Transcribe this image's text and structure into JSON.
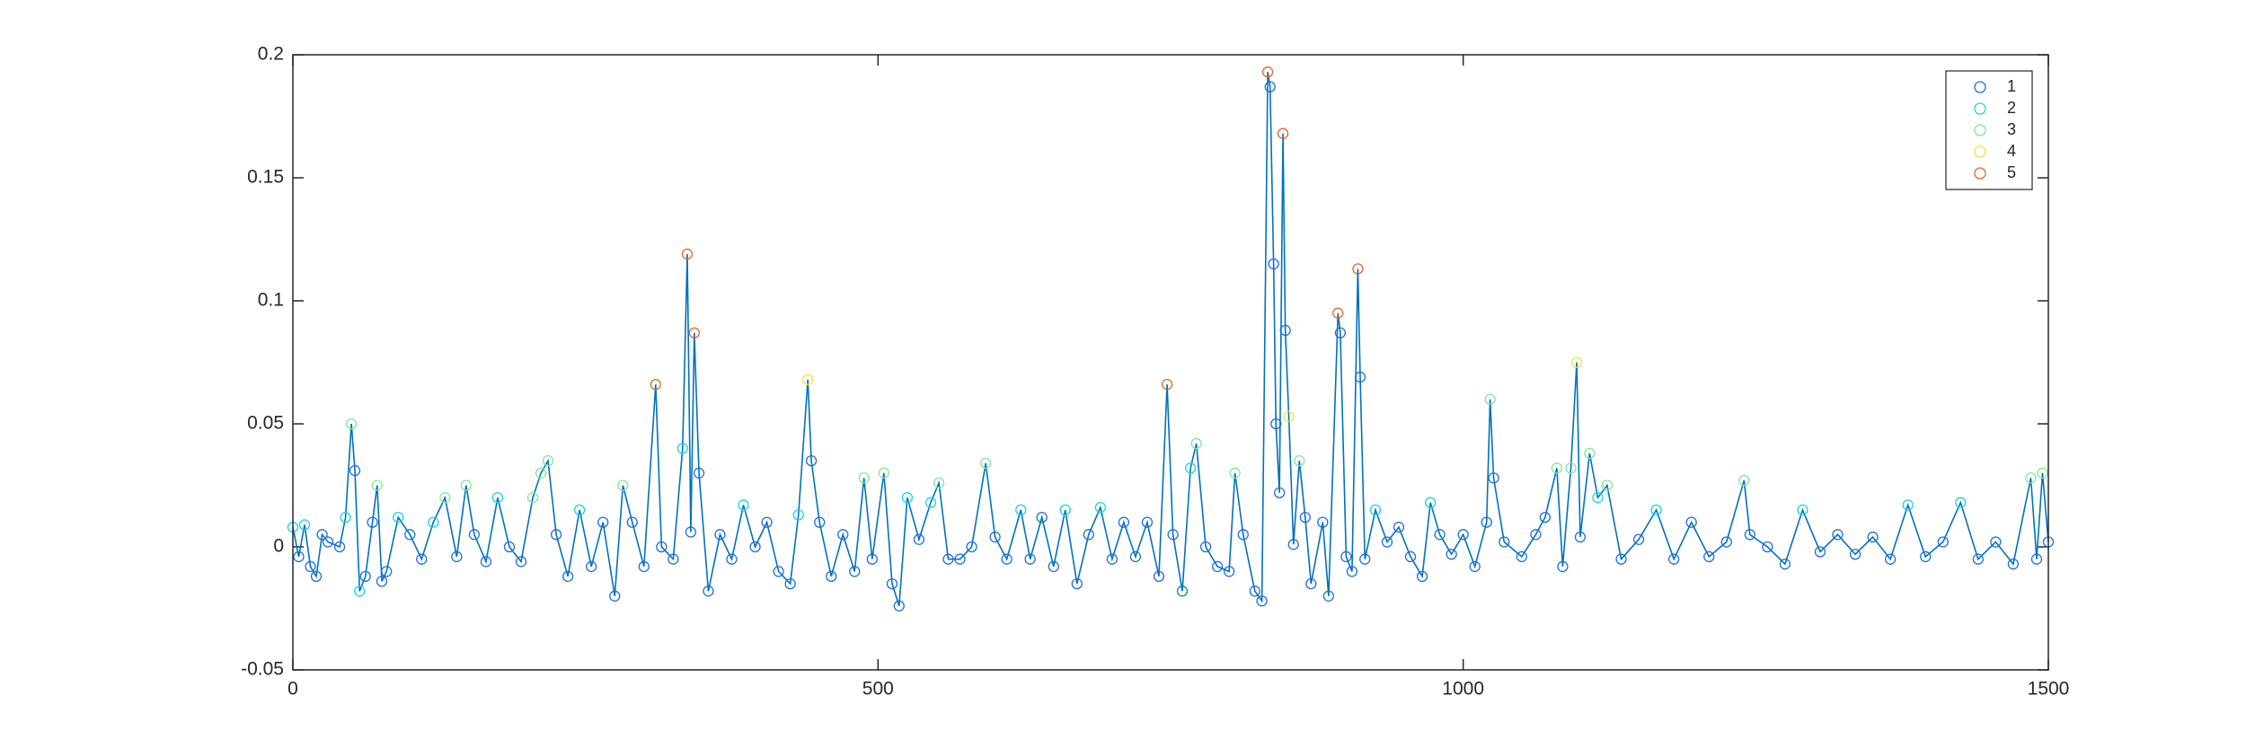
{
  "chart_data": {
    "type": "line",
    "x": [
      0,
      5,
      10,
      15,
      20,
      25,
      30,
      40,
      45,
      50,
      53,
      57,
      62,
      68,
      72,
      76,
      80,
      90,
      100,
      110,
      120,
      130,
      140,
      148,
      155,
      165,
      175,
      185,
      195,
      205,
      212,
      218,
      225,
      235,
      245,
      255,
      265,
      275,
      282,
      290,
      300,
      310,
      315,
      325,
      333,
      337,
      340,
      343,
      347,
      355,
      365,
      375,
      385,
      395,
      405,
      415,
      425,
      432,
      440,
      443,
      450,
      460,
      470,
      480,
      488,
      495,
      505,
      512,
      518,
      525,
      535,
      545,
      552,
      560,
      570,
      580,
      592,
      600,
      610,
      622,
      630,
      640,
      650,
      660,
      670,
      680,
      690,
      700,
      710,
      720,
      730,
      740,
      747,
      752,
      760,
      767,
      772,
      780,
      790,
      800,
      805,
      812,
      822,
      828,
      833,
      835,
      838,
      840,
      843,
      846,
      848,
      851,
      855,
      860,
      865,
      870,
      880,
      885,
      893,
      895,
      900,
      905,
      910,
      912,
      916,
      925,
      935,
      945,
      955,
      965,
      972,
      980,
      990,
      1000,
      1010,
      1020,
      1023,
      1026,
      1035,
      1050,
      1062,
      1070,
      1080,
      1085,
      1092,
      1097,
      1100,
      1108,
      1115,
      1123,
      1135,
      1150,
      1165,
      1180,
      1195,
      1210,
      1225,
      1240,
      1245,
      1260,
      1275,
      1290,
      1305,
      1320,
      1335,
      1350,
      1365,
      1380,
      1395,
      1410,
      1425,
      1440,
      1455,
      1470,
      1485,
      1490,
      1495,
      1500
    ],
    "values": [
      0.008,
      -0.004,
      0.009,
      -0.008,
      -0.012,
      0.005,
      0.002,
      0,
      0.012,
      0.05,
      0.031,
      -0.018,
      -0.012,
      0.01,
      0.025,
      -0.014,
      -0.01,
      0.012,
      0.005,
      -0.005,
      0.01,
      0.02,
      -0.004,
      0.025,
      0.005,
      -0.006,
      0.02,
      0,
      -0.006,
      0.02,
      0.03,
      0.035,
      0.005,
      -0.012,
      0.015,
      -0.008,
      0.01,
      -0.02,
      0.025,
      0.01,
      -0.008,
      0.066,
      0,
      -0.005,
      0.04,
      0.119,
      0.006,
      0.087,
      0.03,
      -0.018,
      0.005,
      -0.005,
      0.017,
      0,
      0.01,
      -0.01,
      -0.015,
      0.013,
      0.068,
      0.035,
      0.01,
      -0.012,
      0.005,
      -0.01,
      0.028,
      -0.005,
      0.03,
      -0.015,
      -0.024,
      0.02,
      0.003,
      0.018,
      0.026,
      -0.005,
      -0.005,
      0,
      0.034,
      0.004,
      -0.005,
      0.015,
      -0.005,
      0.012,
      -0.008,
      0.015,
      -0.015,
      0.005,
      0.016,
      -0.005,
      0.01,
      -0.004,
      0.01,
      -0.012,
      0.066,
      0.005,
      -0.018,
      0.032,
      0.042,
      0,
      -0.008,
      -0.01,
      0.03,
      0.005,
      -0.018,
      -0.022,
      0.193,
      0.187,
      0.115,
      0.05,
      0.022,
      0.168,
      0.088,
      0.053,
      0.001,
      0.035,
      0.012,
      -0.015,
      0.01,
      -0.02,
      0.095,
      0.087,
      -0.004,
      -0.01,
      0.113,
      0.069,
      -0.005,
      0.015,
      0.002,
      0.008,
      -0.004,
      -0.012,
      0.018,
      0.005,
      -0.003,
      0.005,
      -0.008,
      0.01,
      0.06,
      0.028,
      0.002,
      -0.004,
      0.005,
      0.012,
      0.032,
      -0.008,
      0.032,
      0.075,
      0.004,
      0.038,
      0.02,
      0.025,
      -0.005,
      0.003,
      0.015,
      -0.005,
      0.01,
      -0.004,
      0.002,
      0.027,
      0.005,
      0,
      -0.007,
      0.015,
      -0.002,
      0.005,
      -0.003,
      0.004,
      -0.005,
      0.017,
      -0.004,
      0.002,
      0.018,
      -0.005,
      0.002,
      -0.007,
      0.028,
      -0.005,
      0.03,
      0.002
    ],
    "point_series": [
      1,
      0,
      1,
      0,
      0,
      0,
      0,
      0,
      1,
      2,
      0,
      1,
      0,
      0,
      2,
      0,
      0,
      1,
      0,
      0,
      1,
      2,
      0,
      2,
      0,
      0,
      1,
      0,
      0,
      2,
      2,
      2,
      0,
      0,
      1,
      0,
      0,
      0,
      2,
      0,
      0,
      4,
      0,
      0,
      1,
      4,
      0,
      4,
      0,
      0,
      0,
      0,
      1,
      0,
      0,
      0,
      0,
      1,
      3,
      0,
      0,
      0,
      0,
      0,
      2,
      0,
      2,
      0,
      0,
      1,
      0,
      1,
      2,
      0,
      0,
      0,
      2,
      0,
      0,
      1,
      0,
      0,
      0,
      1,
      0,
      0,
      1,
      0,
      0,
      0,
      0,
      0,
      4,
      0,
      0,
      1,
      2,
      0,
      0,
      0,
      2,
      0,
      0,
      0,
      4,
      0,
      0,
      0,
      0,
      4,
      0,
      3,
      0,
      2,
      0,
      0,
      0,
      0,
      4,
      0,
      0,
      0,
      4,
      0,
      0,
      1,
      0,
      0,
      0,
      0,
      1,
      0,
      0,
      0,
      0,
      0,
      2,
      0,
      0,
      0,
      0,
      0,
      2,
      0,
      2,
      3,
      0,
      2,
      1,
      2,
      0,
      0,
      1,
      0,
      0,
      0,
      0,
      2,
      0,
      0,
      0,
      1,
      0,
      0,
      0,
      0,
      0,
      1,
      0,
      0,
      1,
      0,
      0,
      0,
      2,
      0,
      2,
      0
    ],
    "line_color": "#0072bd",
    "series": [
      {
        "name": "1",
        "color": "#1f6fe0"
      },
      {
        "name": "2",
        "color": "#19d3e6"
      },
      {
        "name": "3",
        "color": "#7fe89a"
      },
      {
        "name": "4",
        "color": "#f2e33a"
      },
      {
        "name": "5",
        "color": "#e8642a"
      }
    ],
    "xlim": [
      0,
      1500
    ],
    "xticks": [
      0,
      500,
      1000,
      1500
    ],
    "ylim": [
      -0.05,
      0.2
    ],
    "yticks": [
      -0.05,
      0,
      0.05,
      0.1,
      0.15,
      0.2
    ],
    "grid": false,
    "legend_position": "upper-right"
  }
}
